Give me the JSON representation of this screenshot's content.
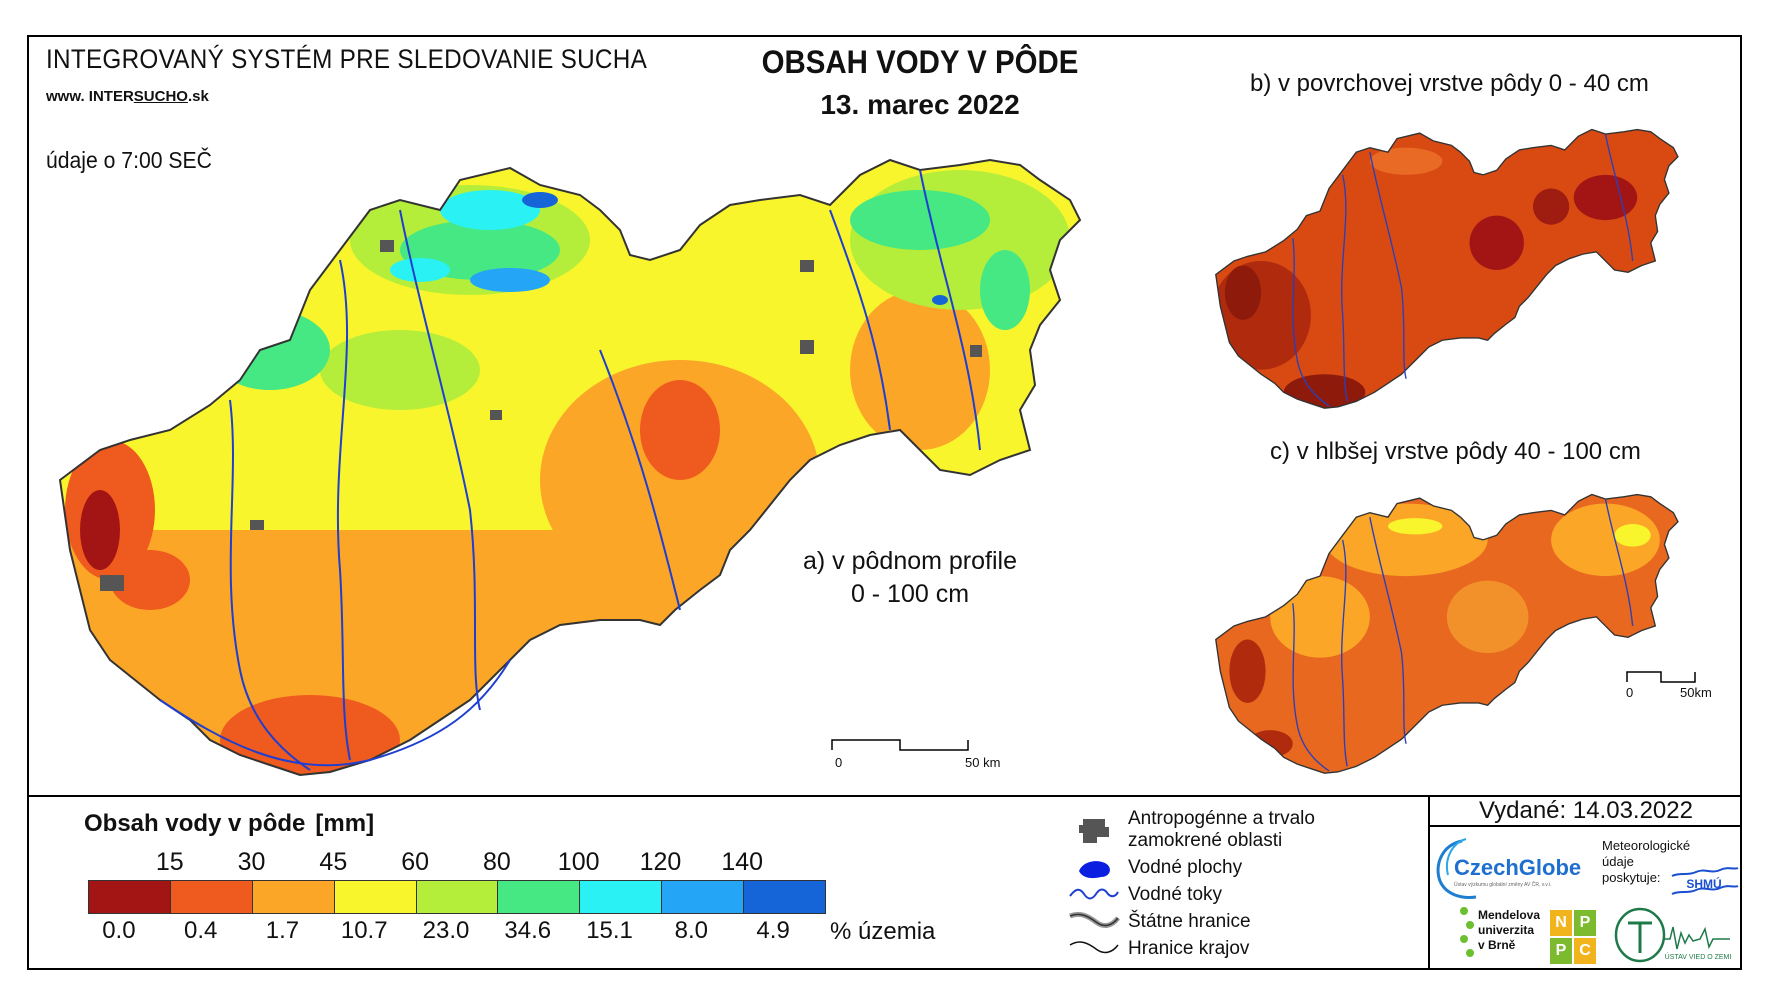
{
  "header": {
    "system_title": "INTEGROVANÝ SYSTÉM PRE SLEDOVANIE SUCHA",
    "website_prefix": "www. INTER",
    "website_highlight": "SUCHO",
    "website_suffix": ".sk",
    "data_time": "údaje o 7:00 SEČ",
    "main_title": "OBSAH VODY V PÔDE",
    "date": "13. marec 2022"
  },
  "maps": {
    "a_label_line1": "a) v pôdnom profile",
    "a_label_line2": "0 - 100 cm",
    "b_label": "b) v povrchovej vrstve pôdy 0 - 40 cm",
    "c_label": "c) v hlbšej vrstve pôdy 40 - 100 cm",
    "scale_main_zero": "0",
    "scale_main_end": "50 km",
    "scale_small_zero": "0",
    "scale_small_end": "50km"
  },
  "legend": {
    "title": "Obsah vody v pôde",
    "unit": "[mm]",
    "thresholds": [
      "15",
      "30",
      "45",
      "60",
      "80",
      "100",
      "120",
      "140"
    ],
    "colors": [
      "#a31515",
      "#ef5a1e",
      "#fba627",
      "#f8f52d",
      "#b5ee3a",
      "#45e883",
      "#2af2f4",
      "#25a5f5",
      "#1565d8"
    ],
    "percentages": [
      "0.0",
      "0.4",
      "1.7",
      "10.7",
      "23.0",
      "34.6",
      "15.1",
      "8.0",
      "4.9"
    ],
    "percent_unit": "% územia"
  },
  "map_legend": {
    "items": [
      {
        "label": "Antropogénne a trvalo zamokrené oblasti",
        "icon": "anthropogenic-area-icon"
      },
      {
        "label": "Vodné plochy",
        "icon": "water-body-icon"
      },
      {
        "label": "Vodné toky",
        "icon": "river-icon"
      },
      {
        "label": "Štátne hranice",
        "icon": "state-border-icon"
      },
      {
        "label": "Hranice krajov",
        "icon": "region-border-icon"
      }
    ],
    "item1_line1": "Antropogénne a trvalo",
    "item1_line2": "zamokrené oblasti"
  },
  "footer": {
    "issued": "Vydané: 14.03.2022",
    "czechglobe": "CzechGlobe",
    "czechglobe_sub": "Ústav výzkumu globální změny AV ČR, v.v.i.",
    "met_line1": "Meteorologické",
    "met_line2": "údaje",
    "met_line3": "poskytuje:",
    "shmu": "SHMÚ",
    "mendel_line1": "Mendelova",
    "mendel_line2": "univerzita",
    "mendel_line3": "v Brně",
    "npc_letters": [
      "N",
      "P",
      "P",
      "C"
    ],
    "uvz": "ÚSTAV VIED O ZEMI"
  }
}
